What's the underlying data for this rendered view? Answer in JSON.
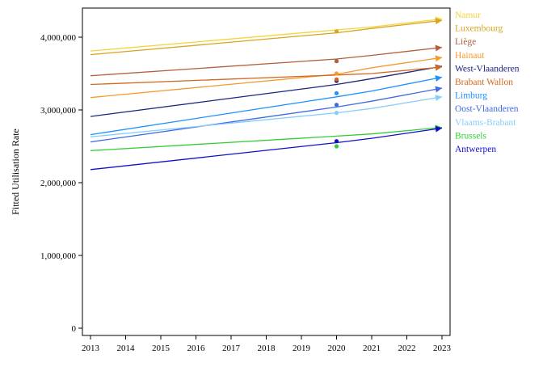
{
  "chart_data": {
    "type": "line",
    "title": "",
    "xlabel": "",
    "ylabel": "Fitted Utilisation Rate",
    "xlim": [
      2013,
      2023
    ],
    "ylim": [
      -100000,
      4400000
    ],
    "x_ticks": [
      2013,
      2014,
      2015,
      2016,
      2017,
      2018,
      2019,
      2020,
      2021,
      2022,
      2023
    ],
    "x_tick_labels": [
      "2013",
      "2014",
      "2015",
      "2016",
      "2017",
      "2018",
      "2019",
      "2020",
      "2021",
      "2022",
      "2023"
    ],
    "y_ticks": [
      0,
      1000000,
      2000000,
      3000000,
      4000000
    ],
    "y_tick_labels": [
      "0",
      "1,000,000",
      "2,000,000",
      "3,000,000",
      "4,000,000"
    ],
    "grid": false,
    "legend_position": "right",
    "x": [
      2013,
      2020,
      2021,
      2023
    ],
    "series": [
      {
        "name": "Namur",
        "color": "#F2D53C",
        "values": [
          3810000,
          4100000,
          4140000,
          4250000
        ],
        "observed": {
          "x": 2020,
          "y": 4080000
        }
      },
      {
        "name": "Luxembourg",
        "color": "#D9A520",
        "values": [
          3760000,
          4060000,
          4120000,
          4230000
        ],
        "observed": {
          "x": 2020,
          "y": 4080000
        }
      },
      {
        "name": "Liège",
        "color": "#B25F3C",
        "values": [
          3470000,
          3700000,
          3750000,
          3860000
        ],
        "observed": {
          "x": 2020,
          "y": 3670000
        }
      },
      {
        "name": "Hainaut",
        "color": "#F59A2C",
        "values": [
          3170000,
          3490000,
          3580000,
          3720000
        ],
        "observed": {
          "x": 2020,
          "y": 3500000
        }
      },
      {
        "name": "West-Vlaanderen",
        "color": "#1A237E",
        "values": [
          2910000,
          3350000,
          3430000,
          3600000
        ],
        "observed": {
          "x": 2020,
          "y": 3400000
        }
      },
      {
        "name": "Brabant Wallon",
        "color": "#D2691E",
        "values": [
          3350000,
          3480000,
          3500000,
          3590000
        ],
        "observed": {
          "x": 2020,
          "y": 3420000
        }
      },
      {
        "name": "Limburg",
        "color": "#1E90FF",
        "values": [
          2660000,
          3180000,
          3260000,
          3450000
        ],
        "observed": {
          "x": 2020,
          "y": 3230000
        }
      },
      {
        "name": "Oost-Vlaanderen",
        "color": "#4169E1",
        "values": [
          2560000,
          3040000,
          3120000,
          3300000
        ],
        "observed": {
          "x": 2020,
          "y": 3070000
        }
      },
      {
        "name": "Vlaams-Brabant",
        "color": "#87CEFA",
        "values": [
          2630000,
          2960000,
          3020000,
          3180000
        ],
        "observed": {
          "x": 2020,
          "y": 2960000
        }
      },
      {
        "name": "Brussels",
        "color": "#32CD32",
        "values": [
          2440000,
          2640000,
          2670000,
          2760000
        ],
        "observed": {
          "x": 2020,
          "y": 2500000
        }
      },
      {
        "name": "Antwerpen",
        "color": "#1010CC",
        "values": [
          2180000,
          2550000,
          2610000,
          2750000
        ],
        "observed": {
          "x": 2020,
          "y": 2570000
        }
      }
    ]
  }
}
